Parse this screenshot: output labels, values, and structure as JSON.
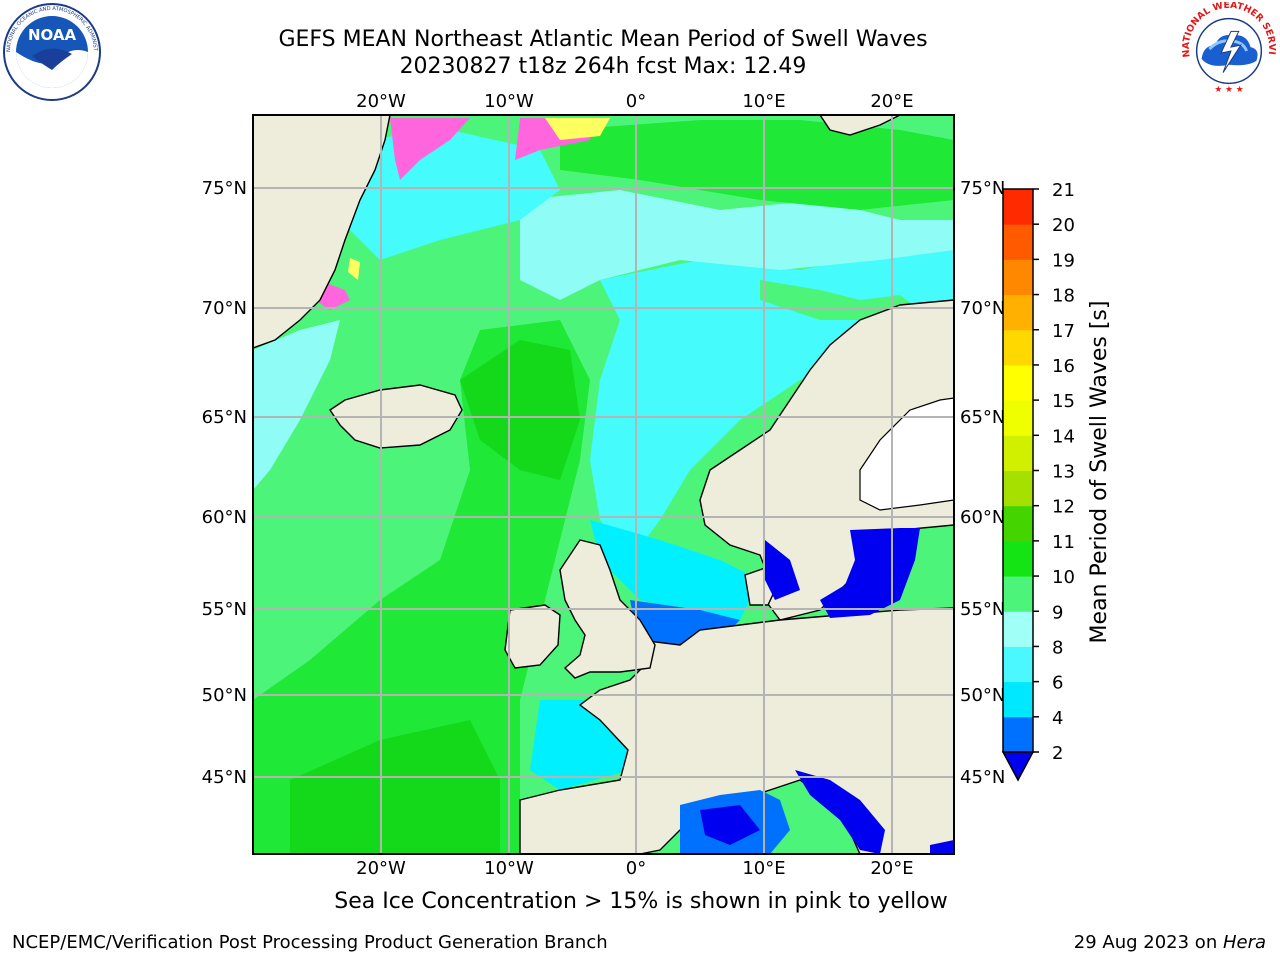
{
  "header": {
    "title_line1": "GEFS MEAN Northeast Atlantic Mean Period of Swell Waves",
    "title_line2": "20230827 t18z 264h fcst   Max: 12.49"
  },
  "logos": {
    "left": "NOAA",
    "left_ring_text": "NATIONAL OCEANIC AND ATMOSPHERIC ADMINISTRATION · U.S. DEPARTMENT OF COMMERCE",
    "right_ring_text": "NATIONAL WEATHER SERVICE"
  },
  "map": {
    "lon_labels": [
      "20°W",
      "10°W",
      "0°",
      "10°E",
      "20°E"
    ],
    "lat_labels": [
      "75°N",
      "70°N",
      "65°N",
      "60°N",
      "55°N",
      "50°N",
      "45°N"
    ],
    "colors": {
      "land": "#eeeddc",
      "swell_9_10": "#4cf57a",
      "swell_10_11": "#1fe836",
      "swell_11_12": "#14d81a",
      "swell_7_9": "#8ffcf6",
      "swell_6_7": "#46fbfb",
      "swell_4_6": "#00f0ff",
      "swell_2_4": "#0070ff",
      "swell_lt2": "#0000f0",
      "ice_pink": "#ff66dd",
      "ice_yellow": "#ffff60",
      "grid": "#b4b4b4"
    }
  },
  "colorbar": {
    "label": "Mean Period of Swell Waves [s]",
    "ticks": [
      "2",
      "4",
      "6",
      "8",
      "9",
      "10",
      "11",
      "12",
      "13",
      "14",
      "15",
      "16",
      "17",
      "18",
      "19",
      "20",
      "21"
    ],
    "colors": [
      "#0070ff",
      "#00e8ff",
      "#4cf8ff",
      "#a0fff6",
      "#4cf57a",
      "#14e414",
      "#44d400",
      "#a6e000",
      "#d0f000",
      "#f0ff00",
      "#ffff00",
      "#ffd800",
      "#ffb000",
      "#ff8800",
      "#ff5a00",
      "#ff2a00",
      "#ff0000"
    ],
    "under_color": "#0000f0"
  },
  "note": "Sea Ice Concentration > 15% is shown in pink to yellow",
  "footer": {
    "left": "NCEP/EMC/Verification Post Processing Product Generation Branch",
    "right_date": "29 Aug 2023 on ",
    "right_host": "Hera"
  }
}
